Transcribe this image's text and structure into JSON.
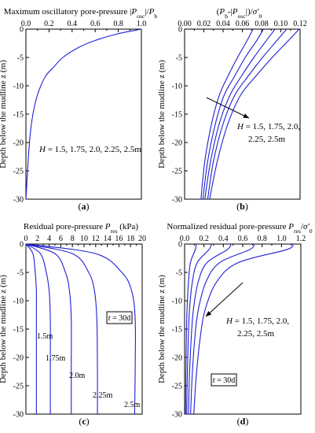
{
  "chart_data": [
    {
      "type": "line",
      "panel": "(a)",
      "xlabel": "Maximum oscillatory pore-pressure |P_osc|/P_b",
      "ylabel": "Depth below the mudline z (m)",
      "xlim": [
        0,
        1.0
      ],
      "ylim": [
        -30,
        0
      ],
      "xticks": [
        "0.0",
        "0.2",
        "0.4",
        "0.6",
        "0.8",
        "1.0"
      ],
      "yticks": [
        "0",
        "-5",
        "-10",
        "-15",
        "-20",
        "-25",
        "-30"
      ],
      "annotation": "H = 1.5, 1.75, 2.0, 2.25, 2.5m",
      "series": [
        {
          "x": [
            1.0,
            0.8,
            0.6,
            0.45,
            0.32,
            0.24,
            0.17,
            0.11,
            0.07,
            0.04,
            0.02,
            0.0
          ],
          "y": [
            0,
            -0.8,
            -2,
            -3.3,
            -5,
            -6.7,
            -8.3,
            -11,
            -14,
            -18,
            -23,
            -30
          ]
        }
      ]
    },
    {
      "type": "line",
      "panel": "(b)",
      "xlabel": "(P_b-|P_osc|)/σ'_0",
      "ylabel": "Depth below the mudline z (m)",
      "xlim": [
        0,
        0.12
      ],
      "ylim": [
        -30,
        0
      ],
      "xticks": [
        "0.00",
        "0.02",
        "0.04",
        "0.06",
        "0.08",
        "0.10",
        "0.12"
      ],
      "yticks": [
        "0",
        "-5",
        "-10",
        "-15",
        "-20",
        "-25",
        "-30"
      ],
      "annotation": "H = 1.5, 1.75, 2.0, 2.25, 2.5m",
      "series": [
        {
          "x": [
            0.071,
            0.065,
            0.055,
            0.045,
            0.036,
            0.028,
            0.021,
            0.017
          ],
          "y": [
            0,
            -2,
            -5,
            -8.3,
            -11.7,
            -16.7,
            -23.3,
            -30
          ]
        },
        {
          "x": [
            0.082,
            0.075,
            0.063,
            0.052,
            0.041,
            0.032,
            0.024,
            0.019
          ],
          "y": [
            0,
            -2,
            -5,
            -8.3,
            -11.7,
            -16.7,
            -23.3,
            -30
          ]
        },
        {
          "x": [
            0.094,
            0.085,
            0.072,
            0.059,
            0.047,
            0.036,
            0.027,
            0.021
          ],
          "y": [
            0,
            -2,
            -5,
            -8.3,
            -11.7,
            -16.7,
            -23.3,
            -30
          ]
        },
        {
          "x": [
            0.106,
            0.096,
            0.081,
            0.066,
            0.052,
            0.04,
            0.03,
            0.024
          ],
          "y": [
            0,
            -2,
            -5,
            -8.3,
            -11.7,
            -16.7,
            -23.3,
            -30
          ]
        },
        {
          "x": [
            0.119,
            0.108,
            0.091,
            0.074,
            0.058,
            0.045,
            0.034,
            0.026
          ],
          "y": [
            0,
            -2,
            -5,
            -8.3,
            -11.7,
            -16.7,
            -23.3,
            -30
          ]
        }
      ]
    },
    {
      "type": "line",
      "panel": "(c)",
      "xlabel": "Residual pore-pressure P_res (kPa)",
      "ylabel": "Depth below the mudline z (m)",
      "xlim": [
        0,
        20
      ],
      "ylim": [
        -30,
        0
      ],
      "xticks": [
        "0",
        "2",
        "4",
        "6",
        "8",
        "10",
        "12",
        "14",
        "16",
        "18",
        "20"
      ],
      "yticks": [
        "0",
        "-5",
        "-10",
        "-15",
        "-20",
        "-25",
        "-30"
      ],
      "annotation": "t = 30d",
      "series": [
        {
          "name": "1.5m",
          "x": [
            0,
            1.2,
            1.6,
            1.8,
            1.8,
            1.8,
            1.8
          ],
          "y": [
            0,
            -1.7,
            -5,
            -8.3,
            -13.3,
            -21.7,
            -30
          ]
        },
        {
          "name": "1.75m",
          "x": [
            0,
            2.5,
            3.5,
            4,
            4.2,
            4.2,
            4.2
          ],
          "y": [
            0,
            -1.7,
            -5,
            -8.3,
            -13.3,
            -21.7,
            -30
          ]
        },
        {
          "name": "2.0m",
          "x": [
            0,
            5,
            6.8,
            7.5,
            7.8,
            7.8,
            7.8
          ],
          "y": [
            0,
            -1.7,
            -5,
            -8.3,
            -13.3,
            -21.7,
            -30
          ]
        },
        {
          "name": "2.25m",
          "x": [
            0,
            8,
            10.8,
            11.8,
            12.2,
            12.3,
            12.3
          ],
          "y": [
            0,
            -1.7,
            -5,
            -8.3,
            -13.3,
            -21.7,
            -30
          ]
        },
        {
          "name": "2.5m",
          "x": [
            0,
            12,
            16.5,
            18.2,
            18.8,
            18.8,
            18.7
          ],
          "y": [
            0,
            -1.7,
            -5,
            -8.3,
            -13.3,
            -21.7,
            -30
          ]
        }
      ]
    },
    {
      "type": "line",
      "panel": "(d)",
      "xlabel": "Normalized residual pore-pressure P_res/σ'_0",
      "ylabel": "Depth below the mudline z (m)",
      "xlim": [
        0,
        1.2
      ],
      "ylim": [
        -30,
        0
      ],
      "xticks": [
        "0.0",
        "0.2",
        "0.4",
        "0.6",
        "0.8",
        "1.0",
        "1.2"
      ],
      "yticks": [
        "0",
        "-5",
        "-10",
        "-15",
        "-20",
        "-25",
        "-30"
      ],
      "annotation": "H = 1.5, 1.75, 2.0, 2.25, 2.5m",
      "annotation2": "t = 30d",
      "series": [
        {
          "x": [
            0.12,
            0.11,
            0.06,
            0.04,
            0.025,
            0.018,
            0.013,
            0.01
          ],
          "y": [
            0,
            -1,
            -3.3,
            -6.7,
            -11.7,
            -16.7,
            -23.3,
            -30
          ]
        },
        {
          "x": [
            0.28,
            0.25,
            0.13,
            0.08,
            0.05,
            0.038,
            0.028,
            0.022
          ],
          "y": [
            0,
            -1,
            -3.3,
            -6.7,
            -11.7,
            -16.7,
            -23.3,
            -30
          ]
        },
        {
          "x": [
            0.48,
            0.44,
            0.23,
            0.14,
            0.09,
            0.068,
            0.05,
            0.04
          ],
          "y": [
            0,
            -1,
            -3.3,
            -6.7,
            -11.7,
            -16.7,
            -23.3,
            -30
          ]
        },
        {
          "x": [
            0.72,
            0.67,
            0.36,
            0.22,
            0.14,
            0.105,
            0.078,
            0.062
          ],
          "y": [
            0,
            -1,
            -3.3,
            -6.7,
            -11.7,
            -16.7,
            -23.3,
            -30
          ]
        },
        {
          "x": [
            1.12,
            1.05,
            0.55,
            0.33,
            0.21,
            0.16,
            0.12,
            0.095
          ],
          "y": [
            0,
            -1,
            -3.3,
            -6.7,
            -11.7,
            -16.7,
            -23.3,
            -30
          ]
        }
      ]
    }
  ],
  "colors": {
    "curve": "#1f1fd6",
    "axis": "#000000"
  }
}
